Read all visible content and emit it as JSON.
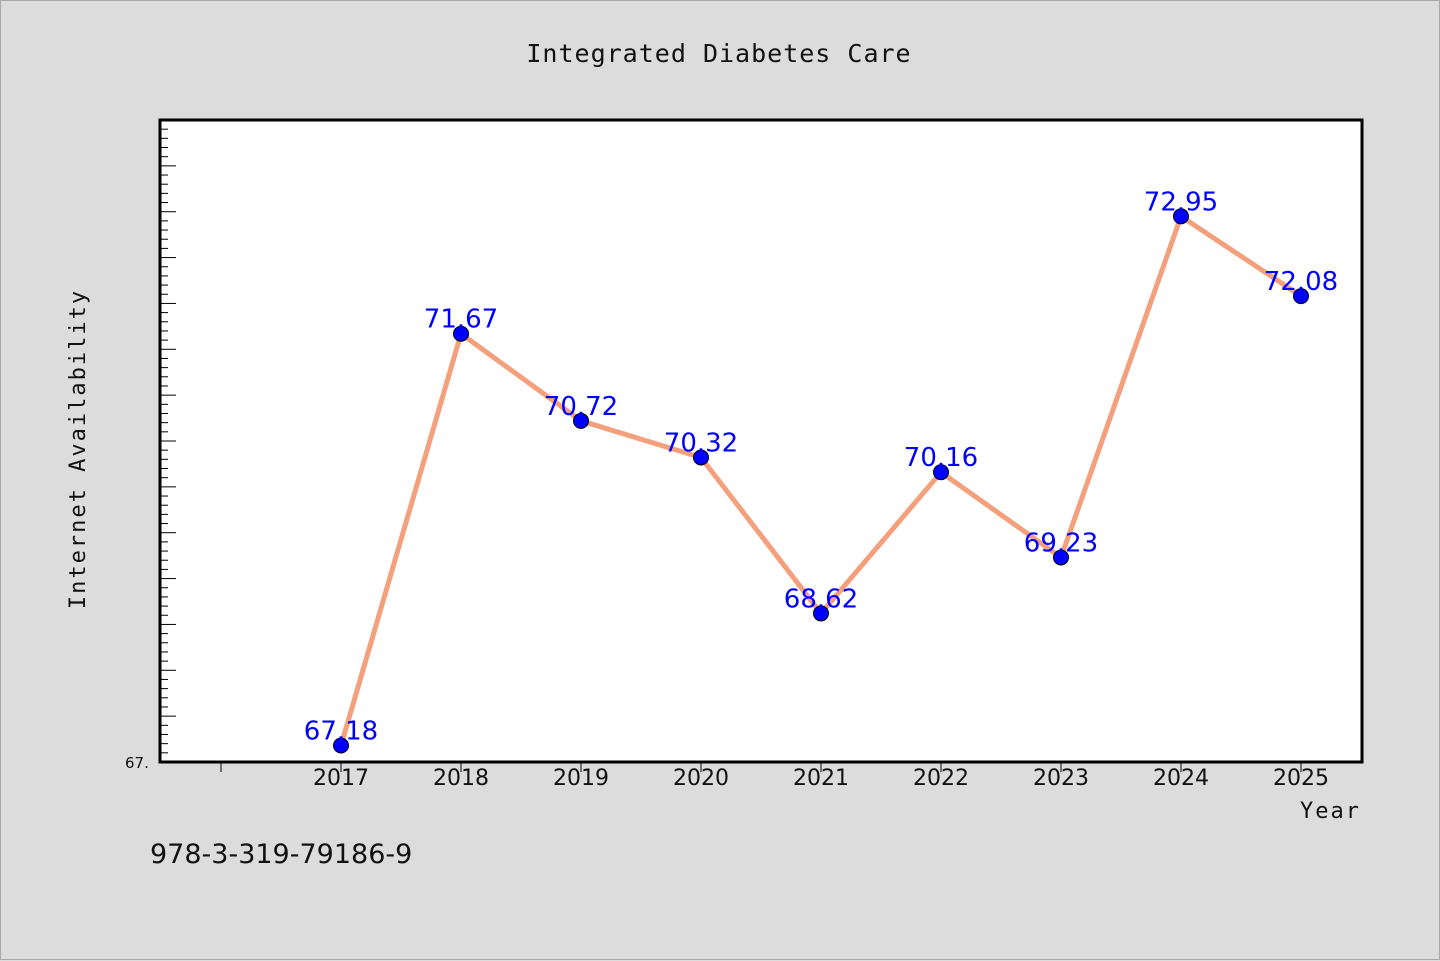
{
  "chart_data": {
    "type": "line",
    "title": "Integrated Diabetes Care",
    "xlabel": "Year",
    "ylabel": "Internet Availability",
    "categories": [
      "2017",
      "2018",
      "2019",
      "2020",
      "2021",
      "2022",
      "2023",
      "2024",
      "2025"
    ],
    "series": [
      {
        "values": [
          67.18,
          71.67,
          70.72,
          70.32,
          68.62,
          70.16,
          69.23,
          72.95,
          72.08
        ]
      }
    ],
    "data_labels": [
      "67.18",
      "71.67",
      "70.72",
      "70.32",
      "68.62",
      "70.16",
      "69.23",
      "72.95",
      "72.08"
    ],
    "ytick_labels": [
      "67."
    ],
    "ylim": [
      67,
      74
    ],
    "grid": false,
    "line_color": "#f4a07c",
    "marker_color": "#0000ff",
    "label_color": "#0000ff"
  },
  "footer": {
    "text": "978-3-319-79186-9"
  }
}
